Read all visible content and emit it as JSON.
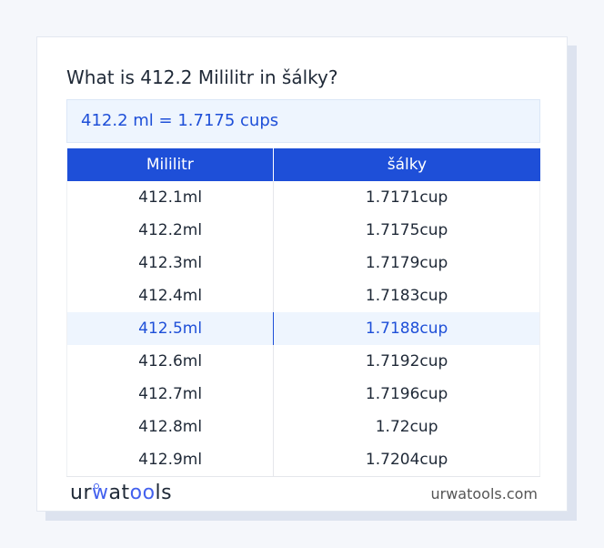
{
  "title": "What is 412.2 Mililitr in šálky?",
  "result": "412.2 ml = 1.7175 cups",
  "table": {
    "headers": [
      "Mililitr",
      "šálky"
    ],
    "rows": [
      [
        "412.1ml",
        "1.7171cup"
      ],
      [
        "412.2ml",
        "1.7175cup"
      ],
      [
        "412.3ml",
        "1.7179cup"
      ],
      [
        "412.4ml",
        "1.7183cup"
      ],
      [
        "412.5ml",
        "1.7188cup"
      ],
      [
        "412.6ml",
        "1.7192cup"
      ],
      [
        "412.7ml",
        "1.7196cup"
      ],
      [
        "412.8ml",
        "1.72cup"
      ],
      [
        "412.9ml",
        "1.7204cup"
      ]
    ],
    "highlighted_row": 4
  },
  "footer": {
    "logo": "urwatools",
    "site": "urwatools.com"
  },
  "colors": {
    "accent": "#1e4fd8",
    "highlight_bg": "#eef5fe"
  }
}
